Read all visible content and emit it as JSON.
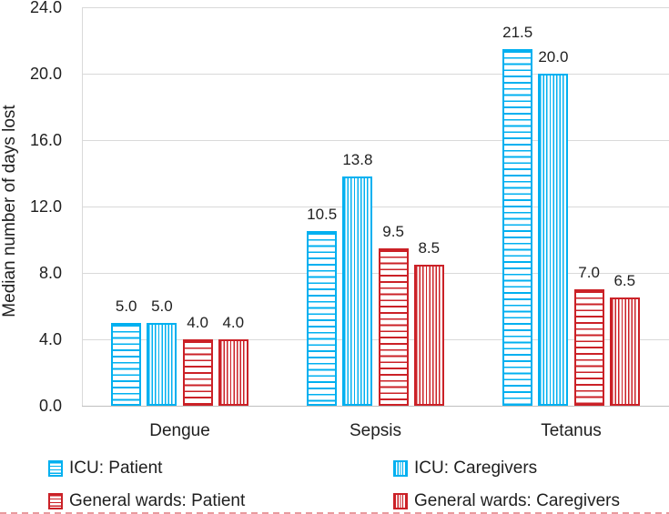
{
  "chart_data": {
    "type": "bar",
    "title": "",
    "xlabel": "",
    "ylabel": "Median number of days lost",
    "categories": [
      "Dengue",
      "Sepsis",
      "Tetanus"
    ],
    "series": [
      {
        "name": "ICU: Patient",
        "color": "#00B0F0",
        "pattern": "horizontal",
        "values": [
          5.0,
          10.5,
          21.5
        ]
      },
      {
        "name": "ICU: Caregivers",
        "color": "#00B0F0",
        "pattern": "vertical",
        "values": [
          5.0,
          13.8,
          20.0
        ]
      },
      {
        "name": "General wards: Patient",
        "color": "#CB2127",
        "pattern": "horizontal",
        "values": [
          4.0,
          9.5,
          7.0
        ]
      },
      {
        "name": "General wards: Caregivers",
        "color": "#CB2127",
        "pattern": "vertical",
        "values": [
          4.0,
          8.5,
          6.5
        ]
      }
    ],
    "data_labels": [
      [
        "5.0",
        "5.0",
        "4.0",
        "4.0"
      ],
      [
        "10.5",
        "13.8",
        "9.5",
        "8.5"
      ],
      [
        "21.5",
        "20.0",
        "7.0",
        "6.5"
      ]
    ],
    "ylim": [
      0,
      24
    ],
    "ytick_step": 4,
    "ytick_labels": [
      "24.0",
      "20.0",
      "16.0",
      "12.0",
      "8.0",
      "4.0",
      "0.0"
    ],
    "grid": true,
    "legend_position": "bottom",
    "colors": {
      "icu": "#00B0F0",
      "general_wards": "#CB2127",
      "gridline": "#d9d9d9",
      "axis_line": "#bfbfbf",
      "text": "#1f1f1f"
    }
  }
}
